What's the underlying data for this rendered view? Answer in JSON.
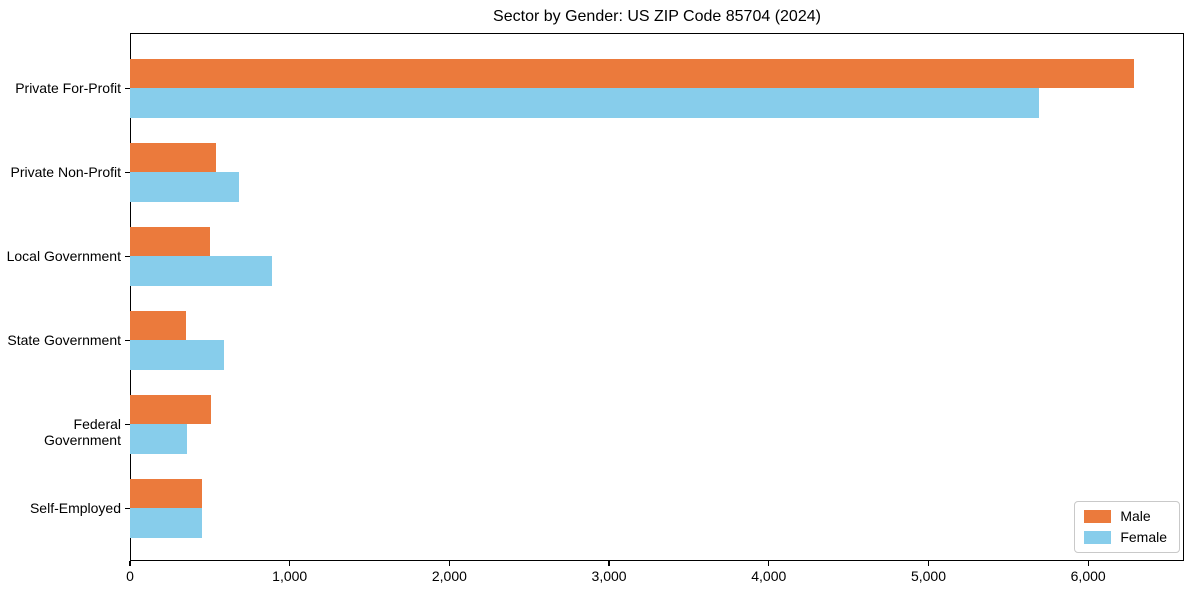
{
  "chart_data": {
    "type": "bar",
    "orientation": "horizontal",
    "title": "Sector by Gender: US ZIP Code 85704 (2024)",
    "categories": [
      "Private For-Profit",
      "Private Non-Profit",
      "Local Government",
      "State Government",
      "Federal Government",
      "Self-Employed"
    ],
    "series": [
      {
        "name": "Male",
        "color": "#EB7A3C",
        "values": [
          6290,
          540,
          500,
          350,
          510,
          450
        ]
      },
      {
        "name": "Female",
        "color": "#87CDEB",
        "values": [
          5690,
          680,
          890,
          590,
          360,
          450
        ]
      }
    ],
    "xlim": [
      0,
      6600
    ],
    "xticks": [
      0,
      1000,
      2000,
      3000,
      4000,
      5000,
      6000
    ],
    "xtick_labels": [
      "0",
      "1,000",
      "2,000",
      "3,000",
      "4,000",
      "5,000",
      "6,000"
    ],
    "grid": false,
    "legend": {
      "position": "lower right"
    }
  }
}
